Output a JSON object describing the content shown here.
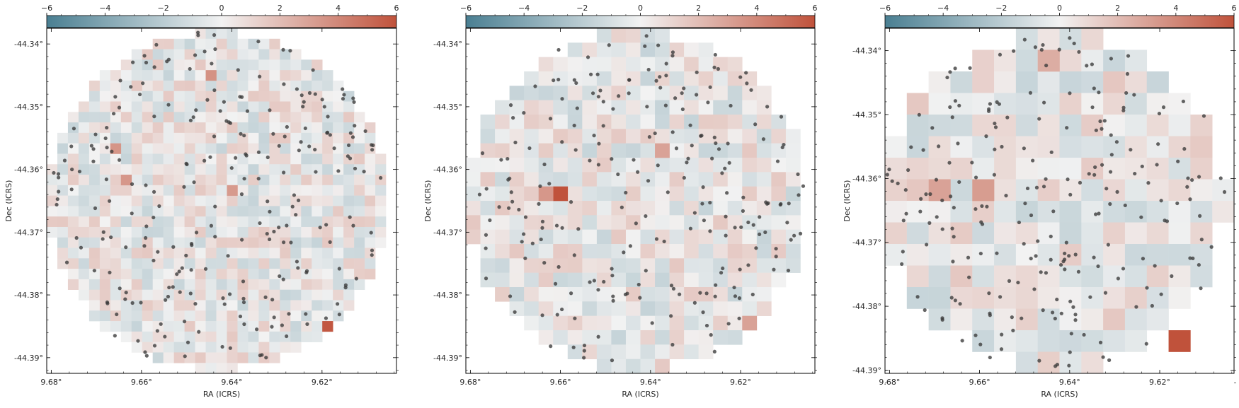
{
  "colors": {
    "negative": "#4a7f92",
    "neutral": "#f2f2f2",
    "positive": "#c0523b",
    "point": "#3a3a3a",
    "axis": "#000000"
  },
  "chart_data": [
    {
      "type": "heatmap",
      "panel": 1,
      "colorbar": {
        "range": [
          -6,
          6
        ],
        "ticks": [
          "−6",
          "−4",
          "−2",
          "0",
          "2",
          "4",
          "6"
        ]
      },
      "xlabel": "RA (ICRS)",
      "ylabel": "Dec (ICRS)",
      "x_ticks": [
        "9.68°",
        "9.66°",
        "9.64°",
        "9.62°"
      ],
      "x_tick_values": [
        9.68,
        9.66,
        9.64,
        9.62
      ],
      "y_ticks": [
        "-44.34°",
        "-44.35°",
        "-44.36°",
        "-44.37°",
        "-44.38°",
        "-44.39°"
      ],
      "y_tick_values": [
        -44.34,
        -44.35,
        -44.36,
        -44.37,
        -44.38,
        -44.39
      ],
      "xlim": [
        9.681,
        9.6035
      ],
      "ylim": [
        -44.3925,
        -44.3375
      ],
      "grid": false,
      "bins": 33,
      "hot_cells": [
        {
          "ra": 9.6195,
          "dec": -44.3848,
          "value": 5.8
        },
        {
          "ra": 9.6455,
          "dec": -44.3455,
          "value": 3.6
        },
        {
          "ra": 9.6405,
          "dec": -44.3636,
          "value": 3.3
        },
        {
          "ra": 9.666,
          "dec": -44.3564,
          "value": 3.5
        },
        {
          "ra": 9.663,
          "dec": -44.361,
          "value": 3.4
        }
      ],
      "points_count": 250
    },
    {
      "type": "heatmap",
      "panel": 2,
      "colorbar": {
        "range": [
          -6,
          6
        ],
        "ticks": [
          "−6",
          "−4",
          "−2",
          "0",
          "2",
          "4",
          "6"
        ]
      },
      "xlabel": "RA (ICRS)",
      "ylabel": "Dec (ICRS)",
      "x_ticks": [
        "9.68°",
        "9.66°",
        "9.64°",
        "9.62°"
      ],
      "x_tick_values": [
        9.68,
        9.66,
        9.64,
        9.62
      ],
      "y_ticks": [
        "-44.34°",
        "-44.35°",
        "-44.36°",
        "-44.37°",
        "-44.38°",
        "-44.39°"
      ],
      "y_tick_values": [
        -44.34,
        -44.35,
        -44.36,
        -44.37,
        -44.38,
        -44.39
      ],
      "xlim": [
        9.681,
        9.6035
      ],
      "ylim": [
        -44.3925,
        -44.3375
      ],
      "grid": false,
      "bins": 24,
      "hot_cells": [
        {
          "ra": 9.6595,
          "dec": -44.3638,
          "value": 6.0
        },
        {
          "ra": 9.663,
          "dec": -44.3638,
          "value": 3.4
        },
        {
          "ra": 9.637,
          "dec": -44.3573,
          "value": 3.0
        },
        {
          "ra": 9.6195,
          "dec": -44.3842,
          "value": 3.0
        }
      ],
      "points_count": 230
    },
    {
      "type": "heatmap",
      "panel": 3,
      "colorbar": {
        "range": [
          -6,
          6
        ],
        "ticks": [
          "−6",
          "−4",
          "−2",
          "0",
          "2",
          "4",
          "6"
        ]
      },
      "xlabel": "RA (ICRS)",
      "ylabel": "Dec (ICRS)",
      "x_ticks": [
        "9.68°",
        "9.66°",
        "9.64°",
        "9.62°"
      ],
      "x_tick_values": [
        9.68,
        9.66,
        9.64,
        9.62
      ],
      "y_ticks": [
        "-44.34°",
        "-44.35°",
        "-44.36°",
        "-44.37°",
        "-44.38°",
        "-44.39°"
      ],
      "y_tick_values": [
        -44.34,
        -44.35,
        -44.36,
        -44.37,
        -44.38,
        -44.39
      ],
      "xlim": [
        9.681,
        9.6035
      ],
      "ylim": [
        -44.3905,
        -44.3365
      ],
      "grid": false,
      "bins": 16,
      "hot_cells": [
        {
          "ra": 9.6165,
          "dec": -44.3855,
          "value": 6.0
        },
        {
          "ra": 9.658,
          "dec": -44.3625,
          "value": 3.2
        },
        {
          "ra": 9.6705,
          "dec": -44.3625,
          "value": 3.0
        },
        {
          "ra": 9.6455,
          "dec": -44.3402,
          "value": 2.6
        }
      ],
      "points_count": 230
    }
  ]
}
